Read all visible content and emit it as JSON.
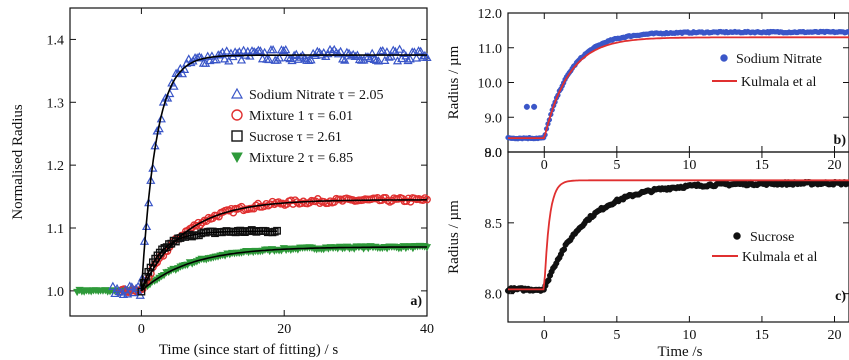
{
  "chart_data": [
    {
      "panel": "a)",
      "type": "scatter",
      "xlabel": "Time (since start of fitting) / s",
      "ylabel": "Normalised Radius",
      "xlim": [
        -10,
        40
      ],
      "ylim": [
        0.96,
        1.45
      ],
      "xticks": [
        0,
        20,
        40
      ],
      "yticks": [
        1.0,
        1.1,
        1.2,
        1.3,
        1.4
      ],
      "ytick_labels": [
        "1.0",
        "1.1",
        "1.2",
        "1.3",
        "1.4"
      ],
      "legend": [
        {
          "label": "Sodium Nitrate τ = 2.05",
          "marker": "triangle-up",
          "color": "#3a56c8"
        },
        {
          "label": "Mixture 1  τ = 6.01",
          "marker": "circle",
          "color": "#e03030"
        },
        {
          "label": "Sucrose  τ = 2.61",
          "marker": "square",
          "color": "#111111"
        },
        {
          "label": "Mixture 2 τ = 6.85",
          "marker": "triangle-down",
          "color": "#2e9a3a"
        }
      ],
      "series": [
        {
          "name": "Sodium Nitrate τ = 2.05",
          "color": "#3a56c8",
          "baseline": 1.0,
          "plateau": 1.375,
          "tau": 2.05,
          "t_start": -4,
          "t_end": 40,
          "fit_end": 40
        },
        {
          "name": "Mixture 1  τ = 6.01",
          "color": "#e03030",
          "baseline": 1.0,
          "plateau": 1.145,
          "tau": 6.01,
          "t_start": -3,
          "t_end": 40,
          "fit_end": 40
        },
        {
          "name": "Sucrose  τ = 2.61",
          "color": "#111111",
          "baseline": 1.0,
          "plateau": 1.095,
          "tau": 2.61,
          "t_start": 0,
          "t_end": 19,
          "fit_end": 19
        },
        {
          "name": "Mixture 2 τ = 6.85",
          "color": "#2e9a3a",
          "baseline": 1.0,
          "plateau": 1.07,
          "tau": 6.85,
          "t_start": -9,
          "t_end": 40,
          "fit_end": 40
        }
      ]
    },
    {
      "panel": "b)",
      "type": "line",
      "xlabel": "",
      "ylabel": "Radius / µm",
      "xlim": [
        -2.5,
        21
      ],
      "ylim": [
        8.0,
        12.0
      ],
      "xticks": [
        0,
        5,
        10,
        15,
        20
      ],
      "yticks": [
        8.0,
        9.0,
        10.0,
        11.0,
        12.0
      ],
      "ytick_labels": [
        "8.0",
        "9.0",
        "10.0",
        "11.0",
        "12.0"
      ],
      "legend": [
        {
          "label": "Sodium Nitrate",
          "marker": "circle",
          "color": "#3a56c8"
        },
        {
          "label": "Kulmala et al",
          "marker": "line",
          "color": "#e03030"
        }
      ],
      "series": [
        {
          "name": "Sodium Nitrate",
          "color": "#3a56c8",
          "baseline": 8.4,
          "plateau": 11.45,
          "tau": 1.8,
          "outliers": [
            [
              -1.2,
              9.3
            ],
            [
              -0.7,
              9.3
            ]
          ]
        },
        {
          "name": "Kulmala et al",
          "color": "#e03030",
          "baseline": 8.4,
          "plateau": 11.3,
          "tau": 1.7
        }
      ]
    },
    {
      "panel": "c)",
      "type": "line",
      "xlabel": "Time /s",
      "ylabel": "Radius / µm",
      "xlim": [
        -2.5,
        21
      ],
      "ylim": [
        7.8,
        9.0
      ],
      "xticks": [
        0,
        5,
        10,
        15,
        20
      ],
      "yticks": [
        8.0,
        8.5,
        9.0
      ],
      "ytick_labels": [
        "8.0",
        "8.5",
        "9.0"
      ],
      "legend": [
        {
          "label": "Sucrose",
          "marker": "circle",
          "color": "#111111"
        },
        {
          "label": "Kulmala et al",
          "marker": "line",
          "color": "#e03030"
        }
      ],
      "series": [
        {
          "name": "Sucrose",
          "color": "#111111",
          "baseline": 8.03,
          "plateau": 8.78,
          "tau": 2.8
        },
        {
          "name": "Kulmala et al",
          "color": "#e03030",
          "baseline": 8.03,
          "plateau": 8.8,
          "tau": 0.35
        }
      ]
    }
  ]
}
